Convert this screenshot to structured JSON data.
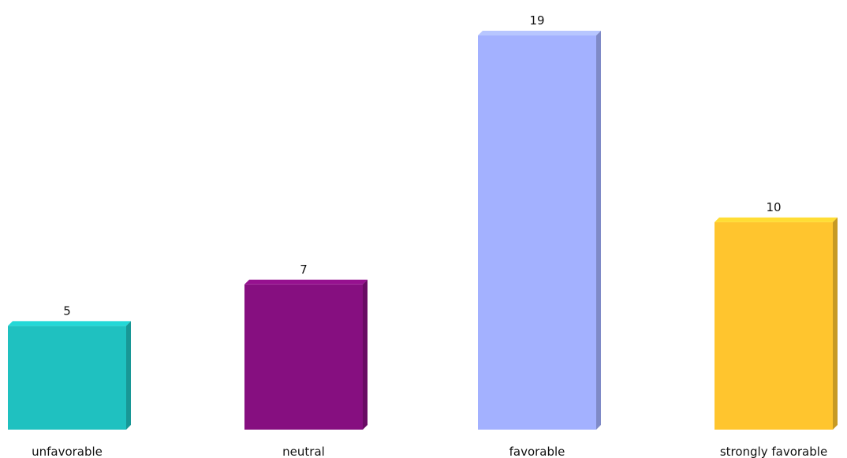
{
  "chart_data": {
    "type": "bar",
    "categories": [
      "unfavorable",
      "neutral",
      "favorable",
      "strongly favorable"
    ],
    "values": [
      5,
      7,
      19,
      10
    ],
    "colors": [
      "#1fc1c0",
      "#860f80",
      "#a3b1ff",
      "#ffc52e"
    ],
    "ylim": [
      0,
      19
    ],
    "grid": false,
    "legend": "none",
    "data_labels": true,
    "style": "3d-bar"
  }
}
